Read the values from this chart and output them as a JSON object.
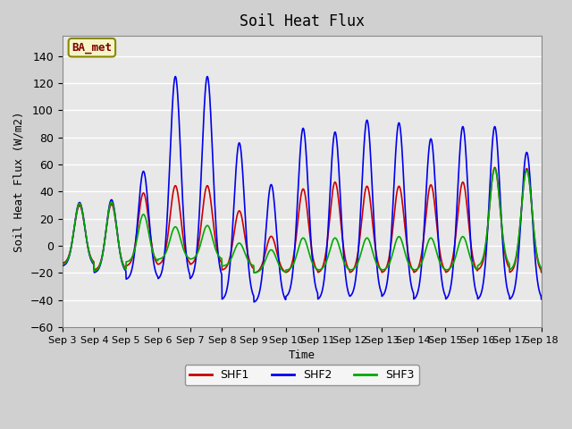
{
  "title": "Soil Heat Flux",
  "ylabel": "Soil Heat Flux (W/m2)",
  "xlabel": "Time",
  "xlim_days": [
    3,
    18
  ],
  "ylim": [
    -60,
    155
  ],
  "yticks": [
    -60,
    -40,
    -20,
    0,
    20,
    40,
    60,
    80,
    100,
    120,
    140
  ],
  "xtick_labels": [
    "Sep 3",
    "Sep 4",
    "Sep 5",
    "Sep 6",
    "Sep 7",
    "Sep 8",
    "Sep 9",
    "Sep 10",
    "Sep 11",
    "Sep 12",
    "Sep 13",
    "Sep 14",
    "Sep 15",
    "Sep 16",
    "Sep 17",
    "Sep 18"
  ],
  "colors": {
    "SHF1": "#cc0000",
    "SHF2": "#0000ee",
    "SHF3": "#00aa00"
  },
  "background_color": "#e8e8e8",
  "plot_bg": "#e8e8e8",
  "legend_label": "BA_met",
  "legend_bg": "#f5f5c8",
  "legend_border": "#888800"
}
